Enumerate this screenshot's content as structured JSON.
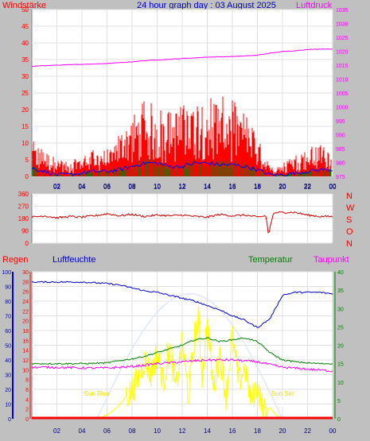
{
  "header": {
    "left_label": "Windstärke",
    "title": "24 hour graph day : 03 August 2025",
    "right_label": "Luftdruck"
  },
  "colors": {
    "background": "#c0c0c0",
    "plot_bg": "#ffffff",
    "wind_speed": "#ff0000",
    "wind_gust_marks": "#008000",
    "wind_avg": "#0000ff",
    "pressure": "#ff00ff",
    "direction": "#cc0000",
    "humidity": "#0000cc",
    "temperature": "#008000",
    "dewpoint": "#ff00ff",
    "solar": "#ffff00",
    "rain": "#ff0000",
    "uv_light": "#e0e8f8"
  },
  "chart_data": [
    {
      "type": "bar",
      "title": "24 hour graph day : 03 August 2025",
      "ylabel": "Windstärke",
      "y2label": "Luftdruck",
      "ylim": [
        0,
        50
      ],
      "y_ticks": [
        "0",
        "5",
        "10",
        "15",
        "20",
        "25",
        "30",
        "35",
        "40",
        "45",
        "50"
      ],
      "y2lim": [
        975,
        1035
      ],
      "y2_ticks": [
        "975",
        "980",
        "985",
        "990",
        "995",
        "1000",
        "1005",
        "1010",
        "1015",
        "1020",
        "1025",
        "1030",
        "1035"
      ],
      "x_ticks": [
        "02",
        "04",
        "06",
        "08",
        "10",
        "12",
        "14",
        "16",
        "18",
        "20",
        "22",
        "00"
      ],
      "series": [
        {
          "name": "Luftdruck",
          "axis": "right",
          "x_hours": [
            0,
            1,
            2,
            3,
            4,
            5,
            6,
            7,
            8,
            9,
            10,
            11,
            12,
            13,
            14,
            15,
            16,
            17,
            18,
            19,
            20,
            21,
            22,
            23,
            24
          ],
          "values": [
            1014.6,
            1014.8,
            1015.0,
            1015.2,
            1015.3,
            1015.4,
            1015.6,
            1015.9,
            1016.2,
            1016.6,
            1016.9,
            1017.1,
            1017.4,
            1017.6,
            1017.9,
            1018.0,
            1018.1,
            1018.3,
            1018.6,
            1019.3,
            1019.9,
            1020.2,
            1020.6,
            1020.8,
            1020.8
          ]
        },
        {
          "name": "wind speed",
          "axis": "left",
          "x_hours": [
            0,
            1,
            2,
            3,
            4,
            5,
            6,
            7,
            8,
            9,
            10,
            11,
            12,
            13,
            14,
            15,
            16,
            17,
            18,
            19,
            20,
            21,
            22,
            23,
            24
          ],
          "values": [
            8,
            6,
            4,
            3,
            5,
            6,
            6,
            10,
            14,
            17,
            16,
            15,
            16,
            18,
            19,
            18,
            17,
            15,
            9,
            2,
            3,
            5,
            6,
            8,
            7
          ]
        },
        {
          "name": "wind average",
          "axis": "left",
          "x_hours": [
            0,
            1,
            2,
            3,
            4,
            5,
            6,
            7,
            8,
            9,
            10,
            11,
            12,
            13,
            14,
            15,
            16,
            17,
            18,
            19,
            20,
            21,
            22,
            23,
            24
          ],
          "values": [
            2.5,
            1.5,
            0.5,
            0.5,
            1,
            1.5,
            1.5,
            2,
            3,
            4,
            4,
            3,
            3,
            4,
            4,
            3.5,
            3.5,
            3,
            2,
            0.5,
            0.5,
            1,
            1.5,
            2,
            2
          ]
        }
      ]
    },
    {
      "type": "line",
      "ylim": [
        0,
        360
      ],
      "y_ticks": [
        "0",
        "90",
        "180",
        "270",
        "360"
      ],
      "right_labels": [
        "N",
        "W",
        "S",
        "O",
        "N"
      ],
      "x_ticks": [
        "02",
        "04",
        "06",
        "08",
        "10",
        "12",
        "14",
        "16",
        "18",
        "20",
        "22",
        "00"
      ],
      "series": [
        {
          "name": "wind direction",
          "x_hours": [
            0,
            1,
            2,
            3,
            4,
            5,
            6,
            7,
            8,
            9,
            10,
            11,
            12,
            13,
            14,
            15,
            16,
            17,
            18,
            18.7,
            18.9,
            19,
            19.3,
            20,
            21,
            22,
            23,
            24
          ],
          "values": [
            190,
            200,
            185,
            195,
            190,
            200,
            215,
            200,
            210,
            195,
            205,
            200,
            205,
            195,
            190,
            210,
            200,
            205,
            190,
            200,
            40,
            120,
            220,
            225,
            225,
            205,
            195,
            195
          ]
        }
      ]
    },
    {
      "type": "line",
      "labels": {
        "rain": "Regen",
        "humidity": "Luftfeuchte",
        "temperature": "Temperatur",
        "dewpoint": "Taupunkt"
      },
      "y_ticks_humidity": [
        "0",
        "10",
        "20",
        "30",
        "40",
        "50",
        "60",
        "70",
        "80",
        "90",
        "100"
      ],
      "y_ticks_rain": [
        "0",
        "2",
        "4",
        "6",
        "8",
        "10",
        "12",
        "14",
        "16",
        "18",
        "20",
        "22",
        "24",
        "26",
        "28",
        "30"
      ],
      "y_ticks_temperature": [
        "0",
        "5",
        "10",
        "15",
        "20",
        "25",
        "30",
        "35",
        "40"
      ],
      "x_ticks": [
        "02",
        "04",
        "06",
        "08",
        "10",
        "12",
        "14",
        "16",
        "18",
        "20",
        "22",
        "00"
      ],
      "annotations": {
        "sunrise": "Sun Rise",
        "sunset": "Sun Set"
      },
      "series": [
        {
          "name": "Luftfeuchte",
          "unit_axis": "humidity",
          "x_hours": [
            0,
            2,
            4,
            6,
            7,
            8,
            9,
            10,
            11,
            12,
            13,
            14,
            15,
            16,
            17,
            18,
            19,
            20,
            21,
            22,
            23,
            24
          ],
          "values": [
            93,
            93,
            93,
            92,
            91,
            89,
            87,
            86,
            84,
            82,
            80,
            77,
            74,
            70,
            67,
            62,
            68,
            84,
            86,
            86,
            86,
            85
          ]
        },
        {
          "name": "Temperatur",
          "unit_axis": "temperature",
          "x_hours": [
            0,
            2,
            4,
            6,
            7,
            8,
            9,
            10,
            11,
            12,
            13,
            14,
            15,
            16,
            17,
            18,
            19,
            20,
            21,
            22,
            23,
            24
          ],
          "values": [
            15,
            15,
            15,
            15.2,
            15.8,
            16.3,
            17,
            18,
            19,
            20,
            21.5,
            22,
            21,
            21.5,
            22,
            21,
            18,
            16,
            15.5,
            15.2,
            15,
            15
          ]
        },
        {
          "name": "Taupunkt",
          "unit_axis": "temperature",
          "x_hours": [
            0,
            2,
            4,
            6,
            8,
            10,
            12,
            14,
            16,
            18,
            20,
            22,
            24
          ],
          "values": [
            14,
            14,
            13.8,
            13.8,
            14.2,
            15,
            15.5,
            16,
            16,
            15.5,
            14,
            13.5,
            13
          ]
        },
        {
          "name": "Solar",
          "unit_axis": "temperature",
          "x_hours": [
            5.2,
            6,
            6.8,
            7.5,
            8,
            8.5,
            9,
            9.5,
            10,
            10.5,
            11,
            11.5,
            12,
            12.5,
            13,
            13.3,
            13.6,
            14,
            14.5,
            15,
            15.5,
            16,
            16.5,
            17,
            17.5,
            18,
            18.5,
            19,
            19.5,
            20
          ],
          "values": [
            0,
            1,
            3,
            6,
            8,
            11,
            16,
            12,
            18,
            10,
            20,
            8,
            21,
            6,
            23,
            27,
            12,
            26,
            8,
            18,
            6,
            23,
            10,
            14,
            5,
            9,
            2,
            3,
            1,
            0
          ]
        },
        {
          "name": "Regen",
          "unit_axis": "rain",
          "x_hours": [
            0,
            24
          ],
          "values": [
            0,
            0
          ]
        }
      ]
    }
  ]
}
